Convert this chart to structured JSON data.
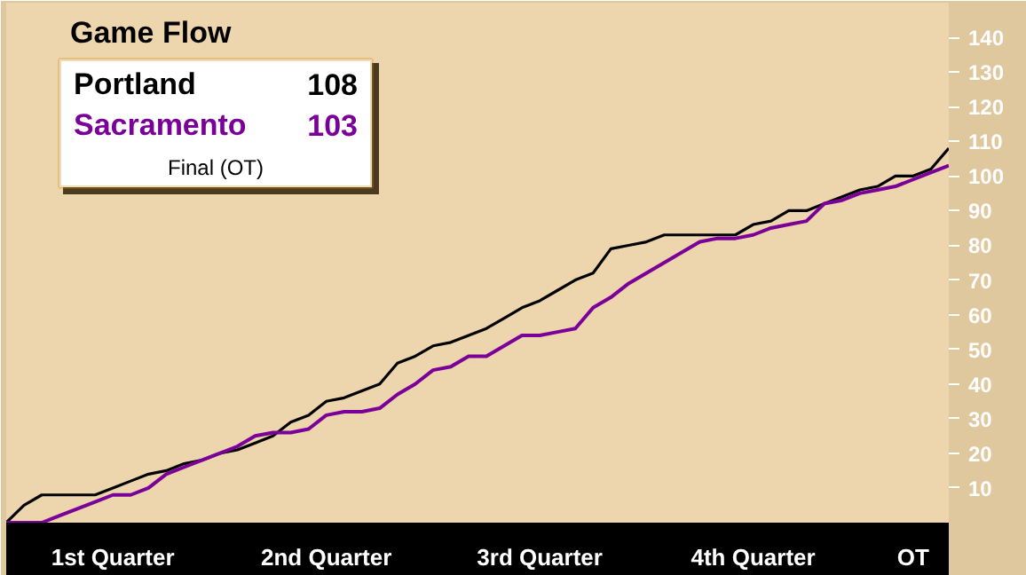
{
  "chart_data": {
    "type": "line",
    "title": "Game Flow",
    "categories": [
      null,
      null,
      null,
      null,
      null,
      null,
      "1st Quarter",
      null,
      null,
      null,
      null,
      null,
      null,
      null,
      null,
      null,
      null,
      null,
      "2nd Quarter",
      null,
      null,
      null,
      null,
      null,
      null,
      null,
      null,
      null,
      null,
      null,
      "3rd Quarter",
      null,
      null,
      null,
      null,
      null,
      null,
      null,
      null,
      null,
      null,
      null,
      "4th Quarter",
      null,
      null,
      null,
      null,
      null,
      null,
      null,
      null,
      "OT",
      null,
      null
    ],
    "ylim": [
      0,
      150
    ],
    "yticks": [
      10,
      20,
      30,
      40,
      50,
      60,
      70,
      80,
      90,
      100,
      110,
      120,
      130,
      140
    ],
    "series": [
      {
        "name": "Portland",
        "color": "#000000",
        "values": [
          0,
          5,
          8,
          8,
          8,
          8,
          10,
          12,
          14,
          15,
          17,
          18,
          20,
          21,
          23,
          25,
          29,
          31,
          35,
          36,
          38,
          40,
          46,
          48,
          51,
          52,
          54,
          56,
          59,
          62,
          64,
          67,
          70,
          72,
          79,
          80,
          81,
          83,
          83,
          83,
          83,
          83,
          86,
          87,
          90,
          90,
          92,
          94,
          96,
          97,
          100,
          100,
          102,
          108
        ]
      },
      {
        "name": "Sacramento",
        "color": "#7b0099",
        "values": [
          0,
          0,
          0,
          2,
          4,
          6,
          8,
          8,
          10,
          14,
          16,
          18,
          20,
          22,
          25,
          26,
          26,
          27,
          31,
          32,
          32,
          33,
          37,
          40,
          44,
          45,
          48,
          48,
          51,
          54,
          54,
          55,
          56,
          62,
          65,
          69,
          72,
          75,
          78,
          81,
          82,
          82,
          83,
          85,
          86,
          87,
          92,
          93,
          95,
          96,
          97,
          99,
          101,
          103
        ]
      }
    ],
    "annotations": [
      "108",
      "103",
      "Final (OT)"
    ],
    "grid": false,
    "line_style": "solid",
    "marker": "none"
  }
}
